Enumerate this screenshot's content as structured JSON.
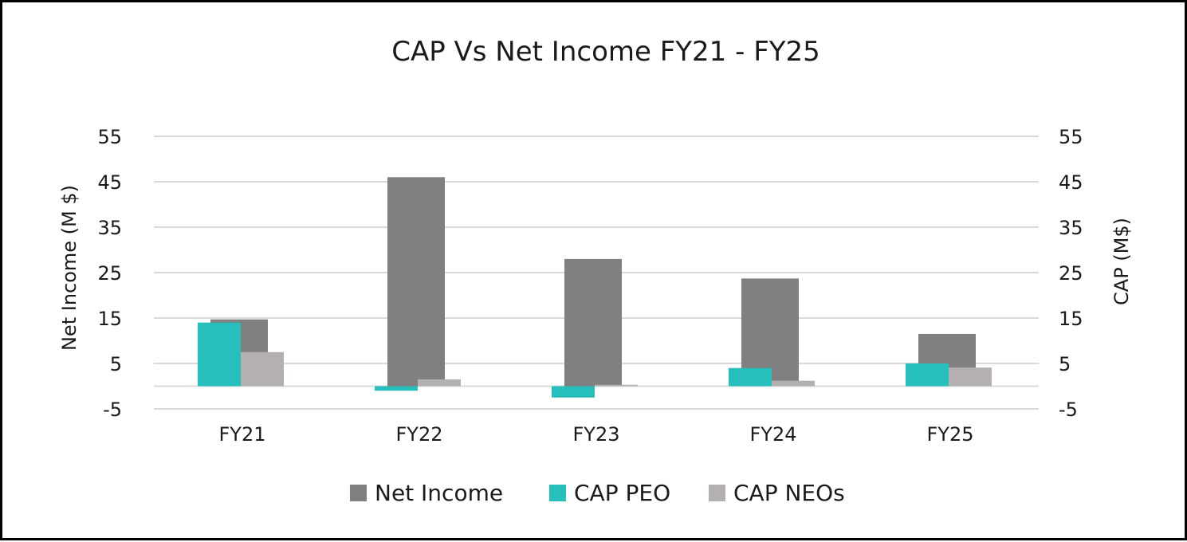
{
  "chart_data": {
    "type": "bar",
    "title": "CAP Vs Net Income FY21 - FY25",
    "ylabel_left": "Net Income (M $)",
    "ylabel_right": "CAP (M$)",
    "categories": [
      "FY21",
      "FY22",
      "FY23",
      "FY24",
      "FY25"
    ],
    "ylim": [
      -5,
      55
    ],
    "y_ticks": [
      55,
      45,
      35,
      25,
      15,
      5,
      -5
    ],
    "grid": true,
    "legend_position": "bottom",
    "series": [
      {
        "name": "Net Income",
        "axis": "left",
        "color": "#808080",
        "values": [
          14.7,
          46.0,
          28.0,
          23.7,
          11.5
        ]
      },
      {
        "name": "CAP PEO",
        "axis": "right",
        "color": "#26bfbb",
        "values": [
          14.0,
          -1.0,
          -2.5,
          4.0,
          5.0
        ]
      },
      {
        "name": "CAP NEOs",
        "axis": "right",
        "color": "#b4b0b0",
        "values": [
          7.5,
          1.5,
          0.3,
          1.2,
          4.1
        ]
      }
    ]
  }
}
